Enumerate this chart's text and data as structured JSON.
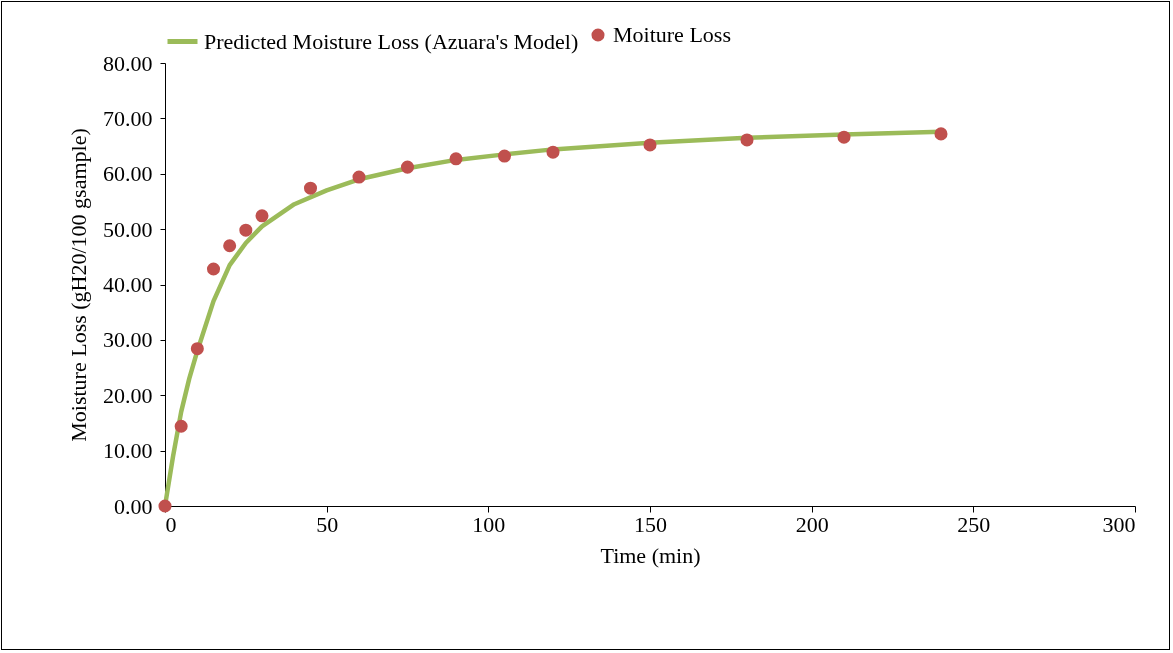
{
  "chart_data": {
    "type": "scatter",
    "xlabel": "Time (min)",
    "ylabel": "Moisture Loss (gH20/100 gsample)",
    "xlim": [
      0,
      300
    ],
    "xticks": [
      0,
      50,
      100,
      150,
      200,
      250,
      300
    ],
    "ylim": [
      0,
      80
    ],
    "yticks": [
      {
        "value": 0,
        "label": "0.00"
      },
      {
        "value": 10,
        "label": "10.00"
      },
      {
        "value": 20,
        "label": "20.00"
      },
      {
        "value": 30,
        "label": "30.00"
      },
      {
        "value": 40,
        "label": "40.00"
      },
      {
        "value": 50,
        "label": "50.00"
      },
      {
        "value": 60,
        "label": "60.00"
      },
      {
        "value": 70,
        "label": "70.00"
      },
      {
        "value": 80,
        "label": "80.00"
      }
    ],
    "grid": false,
    "legend": "top",
    "series": [
      {
        "name": "Predicted Moisture Loss (Azuara's Model)",
        "type": "line",
        "marker": "none",
        "color": "#9bbb59",
        "x": [
          0,
          2.5,
          5,
          7.5,
          10,
          15,
          20,
          25,
          30,
          40,
          50,
          60,
          75,
          90,
          105,
          120,
          150,
          180,
          210,
          240
        ],
        "values": [
          0,
          9,
          17,
          23,
          28,
          37,
          43.5,
          47.5,
          50.5,
          54.5,
          57,
          59,
          61,
          62.5,
          63.5,
          64.4,
          65.6,
          66.5,
          67.1,
          67.6
        ]
      },
      {
        "name": "Moiture Loss",
        "type": "scatter",
        "marker": "circle",
        "color": "#c0504d",
        "x": [
          0,
          5,
          10,
          15,
          20,
          25,
          30,
          45,
          60,
          75,
          90,
          105,
          120,
          150,
          180,
          210,
          240
        ],
        "values": [
          0,
          14.4,
          28.4,
          42.8,
          47,
          49.8,
          52.4,
          57.4,
          59.4,
          61.2,
          62.7,
          63.2,
          63.9,
          65.2,
          66.1,
          66.6,
          67.2
        ]
      }
    ]
  }
}
